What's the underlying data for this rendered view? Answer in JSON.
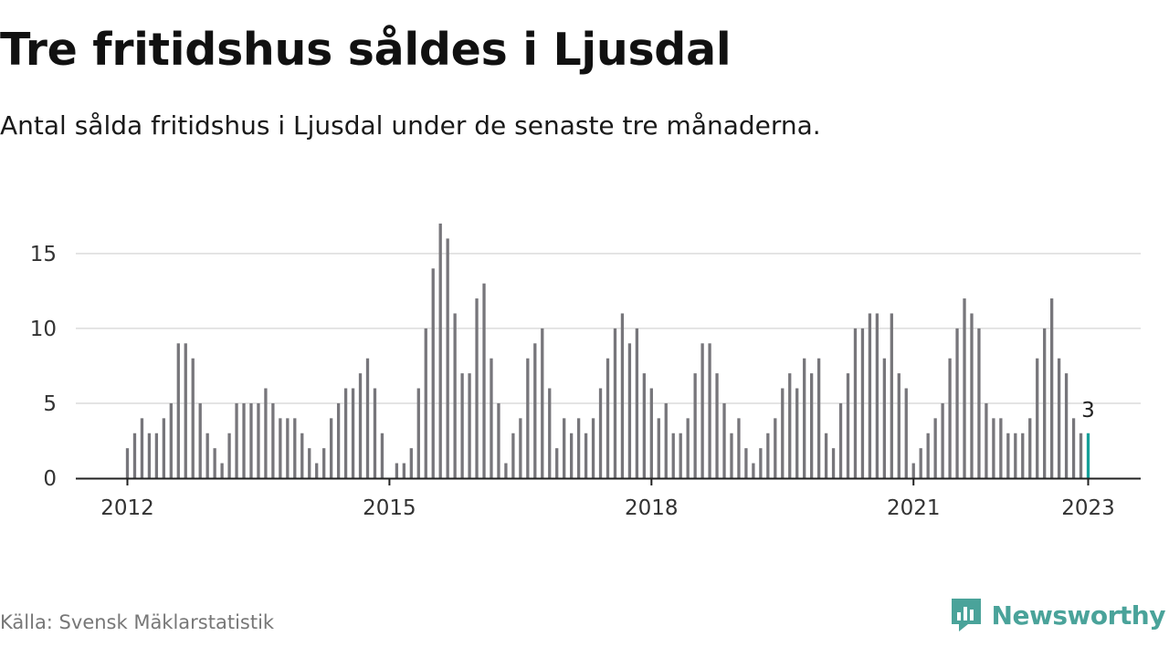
{
  "header": {
    "title": "Tre fritidshus såldes i Ljusdal",
    "subtitle": "Antal sålda fritidshus i Ljusdal under de senaste tre månaderna."
  },
  "footer": {
    "source": "Källa: Svensk Mäklarstatistik",
    "brand": "Newsworthy"
  },
  "colors": {
    "bar": "#77767b",
    "highlight": "#16a09a",
    "grid": "#dcdcdc",
    "axis": "#222222",
    "brand": "#4aa39a"
  },
  "chart_data": {
    "type": "bar",
    "x_start": "2012-01",
    "interval": "month",
    "values": [
      2,
      3,
      4,
      3,
      3,
      4,
      5,
      9,
      9,
      8,
      5,
      3,
      2,
      1,
      3,
      5,
      5,
      5,
      5,
      6,
      5,
      4,
      4,
      4,
      3,
      2,
      1,
      2,
      4,
      5,
      6,
      6,
      7,
      8,
      6,
      3,
      0,
      1,
      1,
      2,
      6,
      10,
      14,
      17,
      16,
      11,
      7,
      7,
      12,
      13,
      8,
      5,
      1,
      3,
      4,
      8,
      9,
      10,
      6,
      2,
      4,
      3,
      4,
      3,
      4,
      6,
      8,
      10,
      11,
      9,
      10,
      7,
      6,
      4,
      5,
      3,
      3,
      4,
      7,
      9,
      9,
      7,
      5,
      3,
      4,
      2,
      1,
      2,
      3,
      4,
      6,
      7,
      6,
      8,
      7,
      8,
      3,
      2,
      5,
      7,
      10,
      10,
      11,
      11,
      8,
      11,
      7,
      6,
      1,
      2,
      3,
      4,
      5,
      8,
      10,
      12,
      11,
      10,
      5,
      4,
      4,
      3,
      3,
      3,
      4,
      8,
      10,
      12,
      8,
      7,
      4,
      3,
      3
    ],
    "highlight_last": true,
    "data_label": {
      "index": 132,
      "text": "3"
    },
    "xticks": [
      {
        "label": "2012",
        "index": 0
      },
      {
        "label": "2015",
        "index": 36
      },
      {
        "label": "2018",
        "index": 72
      },
      {
        "label": "2021",
        "index": 108
      },
      {
        "label": "2023",
        "index": 132
      }
    ],
    "yticks": [
      0,
      5,
      10,
      15
    ],
    "ylim": [
      0,
      17
    ],
    "grid": true,
    "xlabel": "",
    "ylabel": ""
  }
}
